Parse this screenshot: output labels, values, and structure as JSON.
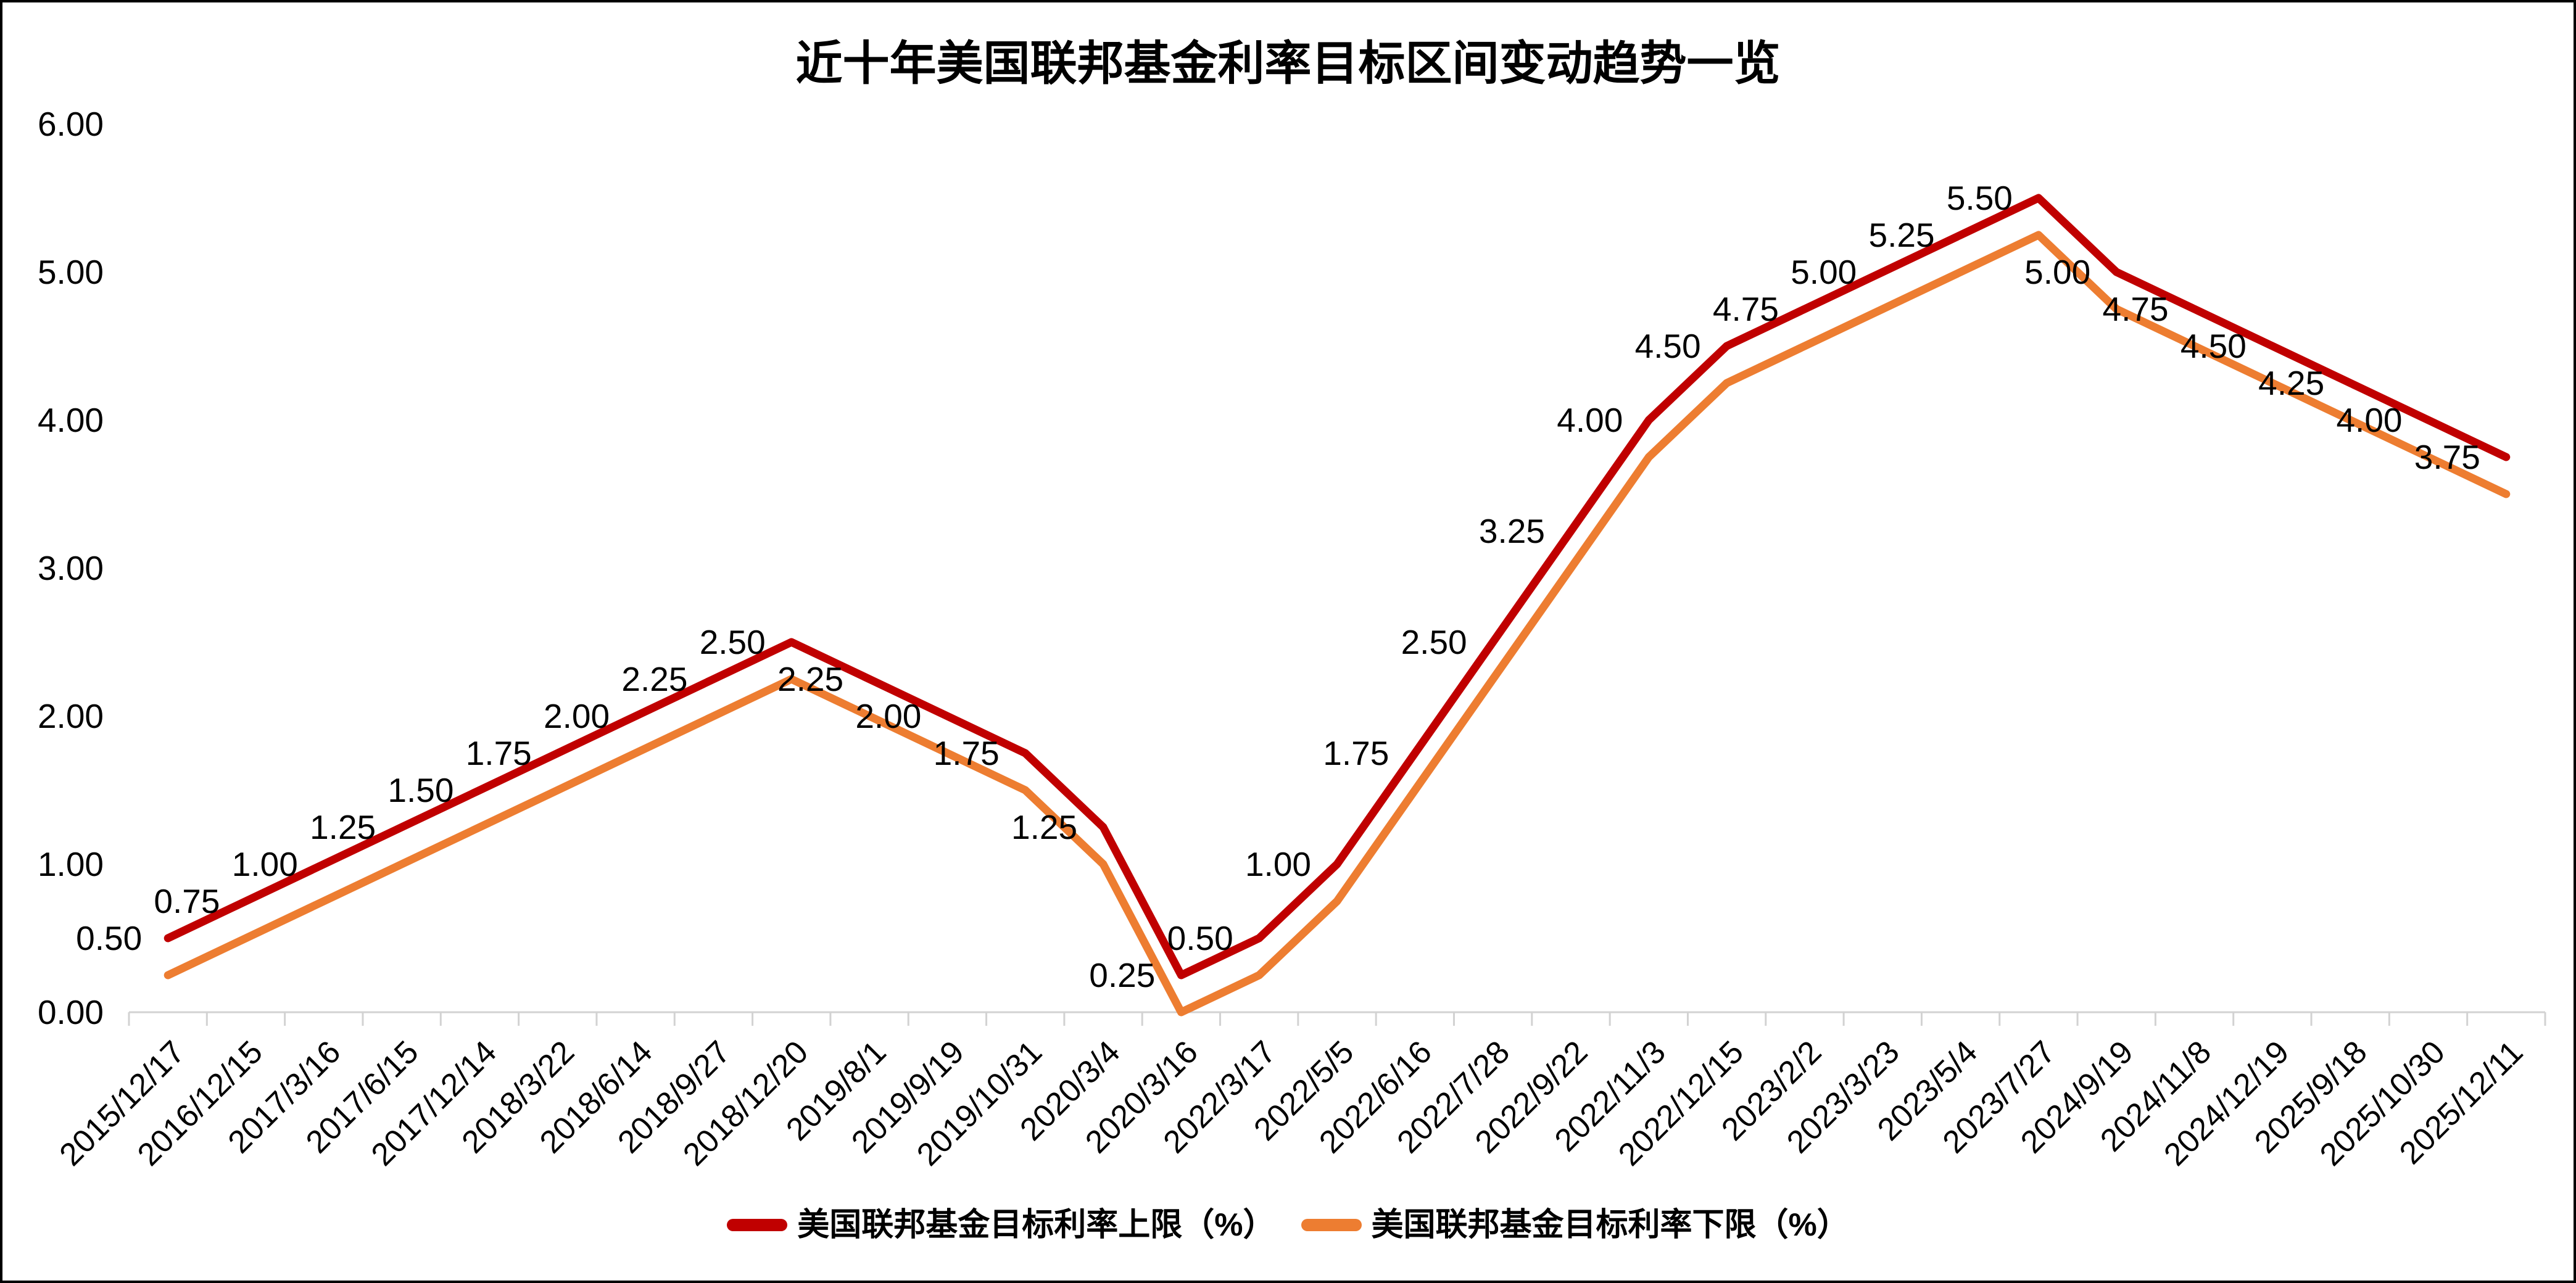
{
  "page": {
    "background_color": "#ffffff",
    "border_color": "#000000"
  },
  "chart_data": {
    "type": "line",
    "title": "近十年美国联邦基金利率目标区间变动趋势一览",
    "categories": [
      "2015/12/17",
      "2016/12/15",
      "2017/3/16",
      "2017/6/15",
      "2017/12/14",
      "2018/3/22",
      "2018/6/14",
      "2018/9/27",
      "2018/12/20",
      "2019/8/1",
      "2019/9/19",
      "2019/10/31",
      "2020/3/4",
      "2020/3/16",
      "2022/3/17",
      "2022/5/5",
      "2022/6/16",
      "2022/7/28",
      "2022/9/22",
      "2022/11/3",
      "2022/12/15",
      "2023/2/2",
      "2023/3/23",
      "2023/5/4",
      "2023/7/27",
      "2024/9/19",
      "2024/11/8",
      "2024/12/19",
      "2025/9/18",
      "2025/10/30",
      "2025/12/11"
    ],
    "series": [
      {
        "name": "美国联邦基金目标利率上限（%）",
        "color": "#C00000",
        "values": [
          0.5,
          0.75,
          1.0,
          1.25,
          1.5,
          1.75,
          2.0,
          2.25,
          2.5,
          2.25,
          2.0,
          1.75,
          1.25,
          0.25,
          0.5,
          1.0,
          1.75,
          2.5,
          3.25,
          4.0,
          4.5,
          4.75,
          5.0,
          5.25,
          5.5,
          5.0,
          4.75,
          4.5,
          4.25,
          4.0,
          3.75
        ],
        "data_labels": true
      },
      {
        "name": "美国联邦基金目标利率下限（%）",
        "color": "#ED7D31",
        "values": [
          0.25,
          0.5,
          0.75,
          1.0,
          1.25,
          1.5,
          1.75,
          2.0,
          2.25,
          2.0,
          1.75,
          1.5,
          1.0,
          0.0,
          0.25,
          0.75,
          1.5,
          2.25,
          3.0,
          3.75,
          4.25,
          4.5,
          4.75,
          5.0,
          5.25,
          4.75,
          4.5,
          4.25,
          4.0,
          3.75,
          3.5
        ],
        "data_labels": false
      }
    ],
    "ylim": [
      0,
      6
    ],
    "y_ticks": [
      "0.00",
      "1.00",
      "2.00",
      "3.00",
      "4.00",
      "5.00",
      "6.00"
    ],
    "label_format": "0.00",
    "grid": false,
    "legend_position": "bottom",
    "axis_color": "#D2D2D2",
    "text_color": "#000000"
  }
}
